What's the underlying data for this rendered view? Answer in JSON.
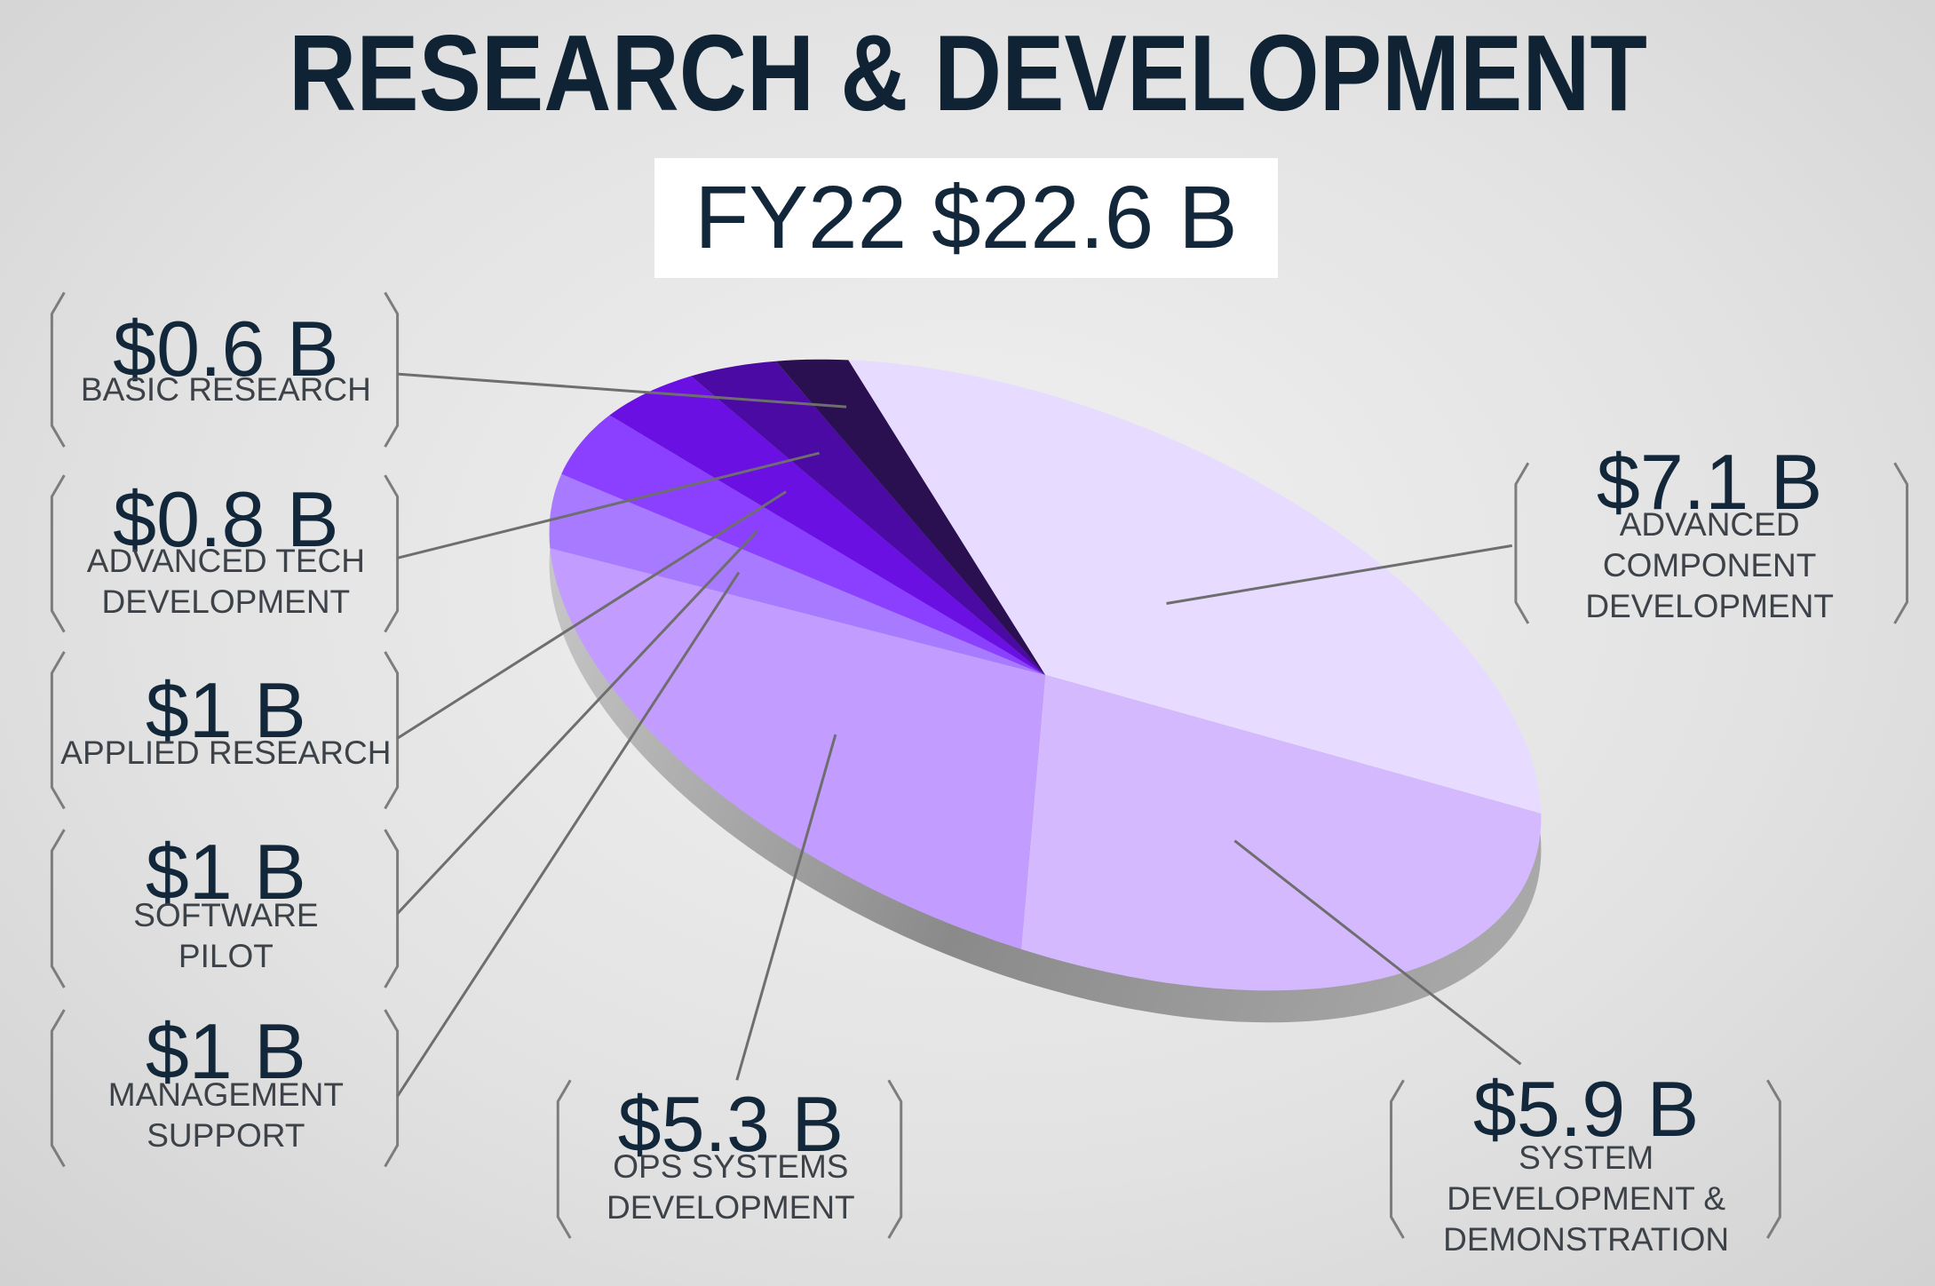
{
  "title": "RESEARCH & DEVELOPMENT",
  "subtitle": "FY22 $22.6 B",
  "chart_data": {
    "type": "pie",
    "categories": [
      "ADVANCED COMPONENT DEVELOPMENT",
      "SYSTEM DEVELOPMENT & DEMONSTRATION",
      "OPS SYSTEMS DEVELOPMENT",
      "MANAGEMENT SUPPORT",
      "SOFTWARE PILOT",
      "APPLIED RESEARCH",
      "ADVANCED TECH DEVELOPMENT",
      "BASIC RESEARCH"
    ],
    "values": [
      7.1,
      5.9,
      5.3,
      1,
      1,
      1,
      0.8,
      0.6
    ],
    "value_labels": [
      "$7.1 B",
      "$5.9 B",
      "$5.3 B",
      "$1 B",
      "$1 B",
      "$1 B",
      "$0.8 B",
      "$0.6 B"
    ],
    "colors": [
      "#e7dcff",
      "#d5b9ff",
      "#c39cff",
      "#a87aff",
      "#8b3fff",
      "#6b10e2",
      "#4a0aa3",
      "#2a1050"
    ]
  }
}
